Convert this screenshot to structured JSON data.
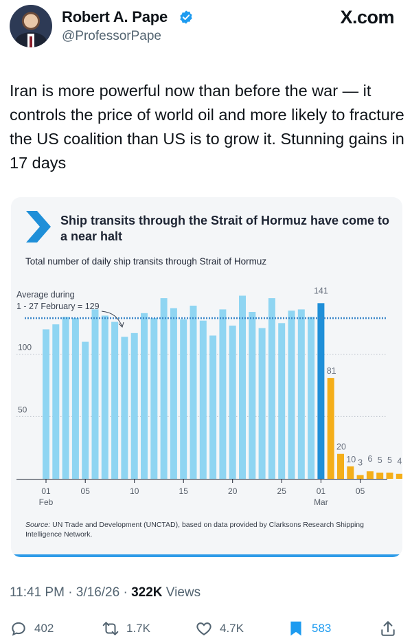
{
  "header": {
    "name": "Robert A. Pape",
    "handle": "@ProfessorPape",
    "site": "X.com"
  },
  "tweet": {
    "text": "Iran is more powerful now than before the war — it controls the price of world oil and more likely to fracture the US coalition than US is to grow it. Stunning gains in 17 days"
  },
  "card": {
    "title": "Ship transits through the Strait of Hormuz have come to a near halt",
    "subtitle": "Total number of daily ship transits through Strait of Hormuz",
    "source_label": "Source:",
    "source_text": " UN Trade and Development (UNCTAD), based on data provided by Clarksons Research Shipping Intelligence Network.",
    "colors": {
      "feb": "#8fd5f2",
      "highlight": "#1f8fd8",
      "mar": "#f4ae19",
      "avgline": "#3a86c8"
    }
  },
  "chart_data": {
    "type": "bar",
    "title": "Ship transits through the Strait of Hormuz have come to a near halt",
    "subtitle": "Total number of daily ship transits through Strait of Hormuz",
    "ylim": [
      0,
      150
    ],
    "yticks": [
      50,
      100
    ],
    "average": {
      "value": 129,
      "label_line1": "Average during",
      "label_line2": "1 - 27 February = 129"
    },
    "series": [
      {
        "values": [
          120,
          124,
          130,
          129,
          110,
          136,
          131,
          126,
          114,
          117,
          133,
          129,
          145,
          137,
          128,
          139,
          127,
          115,
          136,
          123,
          147,
          134,
          121,
          145,
          125,
          135,
          136,
          130,
          141,
          81,
          20,
          10,
          3,
          6,
          5,
          5,
          4
        ],
        "colors": [
          "feb",
          "feb",
          "feb",
          "feb",
          "feb",
          "feb",
          "feb",
          "feb",
          "feb",
          "feb",
          "feb",
          "feb",
          "feb",
          "feb",
          "feb",
          "feb",
          "feb",
          "feb",
          "feb",
          "feb",
          "feb",
          "feb",
          "feb",
          "feb",
          "feb",
          "feb",
          "feb",
          "feb",
          "highlight",
          "mar",
          "mar",
          "mar",
          "mar",
          "mar",
          "mar",
          "mar",
          "mar"
        ]
      }
    ],
    "data_labels": [
      {
        "index": 28,
        "text": "141"
      },
      {
        "index": 29,
        "text": "81"
      },
      {
        "index": 30,
        "text": "20"
      },
      {
        "index": 31,
        "text": "10"
      },
      {
        "index": 32,
        "text": "3"
      },
      {
        "index": 33,
        "text": "6"
      },
      {
        "index": 34,
        "text": "5"
      },
      {
        "index": 35,
        "text": "5"
      },
      {
        "index": 36,
        "text": "4"
      }
    ],
    "x_ticks": [
      {
        "index": 0,
        "label": "01",
        "sub": "Feb"
      },
      {
        "index": 4,
        "label": "05",
        "sub": ""
      },
      {
        "index": 9,
        "label": "10",
        "sub": ""
      },
      {
        "index": 14,
        "label": "15",
        "sub": ""
      },
      {
        "index": 19,
        "label": "20",
        "sub": ""
      },
      {
        "index": 24,
        "label": "25",
        "sub": ""
      },
      {
        "index": 28,
        "label": "01",
        "sub": "Mar"
      },
      {
        "index": 32,
        "label": "05",
        "sub": ""
      }
    ]
  },
  "footer": {
    "time": "11:41 PM · 3/16/26 · ",
    "views_count": "322K",
    "views_label": " Views"
  },
  "actions": {
    "replies": "402",
    "reposts": "1.7K",
    "likes": "4.7K",
    "bookmarks": "583"
  }
}
